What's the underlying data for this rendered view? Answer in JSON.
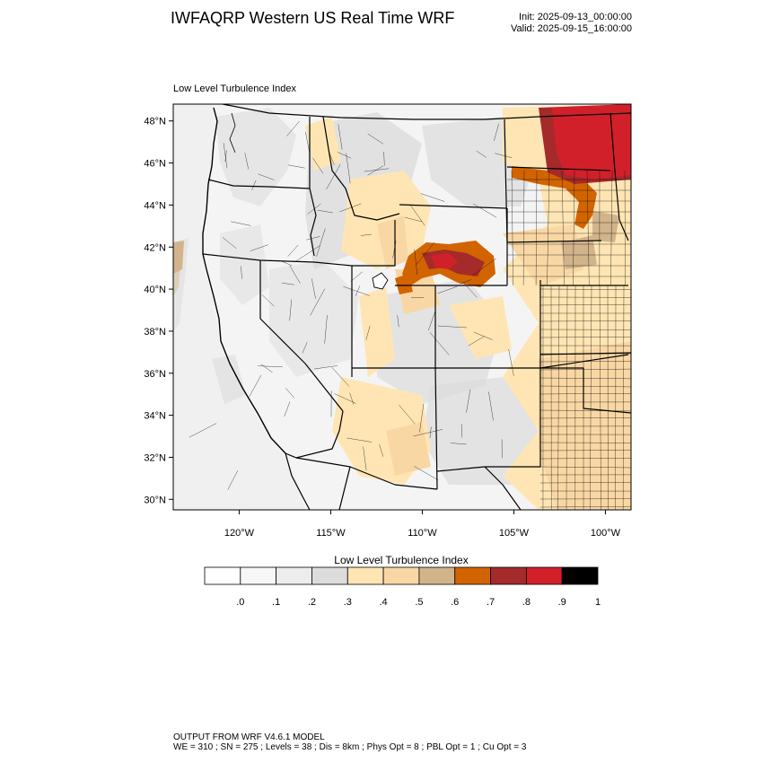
{
  "header": {
    "title": "IWFAQRP Western US Real Time WRF",
    "init": "Init: 2025-09-13_00:00:00",
    "valid": "Valid: 2025-09-15_16:00:00"
  },
  "map": {
    "subtitle": "Low Level Turbulence Index",
    "lon_range": [
      -123.6,
      -98.6
    ],
    "lat_range": [
      29.5,
      48.8
    ],
    "lat_ticks": [
      "30°N",
      "32°N",
      "34°N",
      "36°N",
      "38°N",
      "40°N",
      "42°N",
      "44°N",
      "46°N",
      "48°N"
    ],
    "lon_ticks": [
      "120°W",
      "115°W",
      "110°W",
      "105°W",
      "100°W"
    ],
    "land_color": "#f4f4f4",
    "ocean_color": "#f0f0f0"
  },
  "colorbar": {
    "title": "Low Level Turbulence Index",
    "labels": [
      ".0",
      ".1",
      ".2",
      ".3",
      ".4",
      ".5",
      ".6",
      ".7",
      ".8",
      ".9",
      "1"
    ],
    "colors": [
      "#ffffff",
      "#f7f7f7",
      "#ededed",
      "#dcdcdc",
      "#ffe5b4",
      "#f9d7a4",
      "#d2b48c",
      "#d26400",
      "#a52a2a",
      "#d2202a",
      "#000000"
    ]
  },
  "footer": {
    "line1": "OUTPUT FROM WRF V4.6.1 MODEL",
    "line2": "WE = 310 ; SN = 275 ; Levels = 38 ; Dis = 8km ; Phys Opt = 8 ; PBL Opt = 1 ; Cu Opt = 3"
  }
}
